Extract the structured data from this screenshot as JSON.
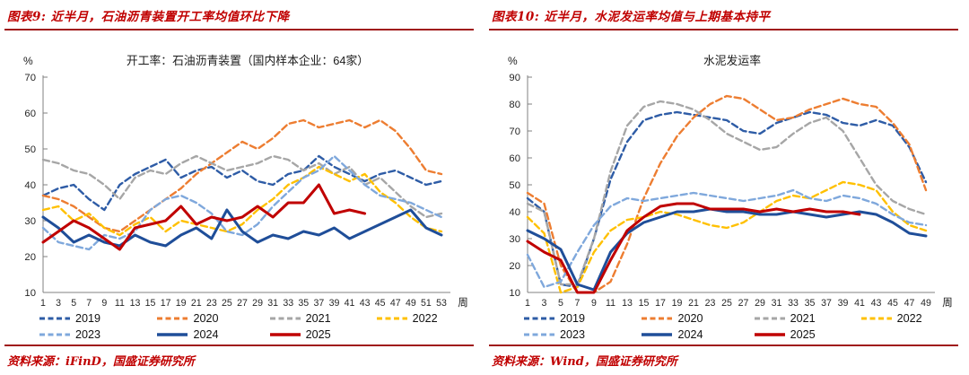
{
  "page": {
    "accent_red": "#C00000",
    "rule_color": "#A01818"
  },
  "figures": [
    {
      "caption": "图表9: 近半月，石油沥青装置开工率均值环比下降",
      "source": "资料来源：iFinD，国盛证券研究所"
    },
    {
      "caption": "图表10: 近半月，水泥发运率均值与上期基本持平",
      "source": "资料来源：Wind，国盛证券研究所"
    }
  ],
  "chart_data": [
    {
      "type": "line",
      "title": "开工率：石油沥青装置（国内样本企业：64家）",
      "unit_label": "%",
      "xlabel": "周",
      "grid": false,
      "legend_position": "bottom",
      "ylim": [
        10,
        70
      ],
      "ytick_step": 10,
      "xlim": [
        1,
        53
      ],
      "x_ticks": [
        1,
        3,
        5,
        7,
        9,
        11,
        13,
        15,
        17,
        19,
        21,
        23,
        25,
        27,
        29,
        31,
        33,
        35,
        37,
        39,
        41,
        43,
        45,
        47,
        49,
        51,
        53
      ],
      "series": [
        {
          "name": "2019",
          "color": "#2E5CA6",
          "dash": true,
          "values": [
            37,
            39,
            40,
            36,
            33,
            40,
            43,
            45,
            47,
            42,
            44,
            45,
            42,
            44,
            41,
            40,
            43,
            44,
            48,
            45,
            43,
            41,
            43,
            44,
            42,
            40,
            41
          ]
        },
        {
          "name": "2020",
          "color": "#ED7D31",
          "dash": true,
          "values": [
            37,
            36,
            34,
            31,
            28,
            27,
            30,
            33,
            36,
            39,
            43,
            46,
            49,
            52,
            50,
            53,
            57,
            58,
            56,
            57,
            58,
            56,
            58,
            55,
            50,
            44,
            43
          ]
        },
        {
          "name": "2021",
          "color": "#A6A6A6",
          "dash": true,
          "values": [
            47,
            46,
            44,
            43,
            40,
            36,
            42,
            44,
            43,
            46,
            48,
            46,
            44,
            45,
            46,
            48,
            47,
            44,
            46,
            43,
            45,
            40,
            42,
            38,
            34,
            31,
            32
          ]
        },
        {
          "name": "2022",
          "color": "#FFC000",
          "dash": true,
          "values": [
            33,
            34,
            30,
            32,
            28,
            26,
            29,
            31,
            27,
            30,
            29,
            28,
            27,
            29,
            33,
            36,
            40,
            42,
            45,
            43,
            41,
            43,
            38,
            35,
            31,
            28,
            27
          ]
        },
        {
          "name": "2023",
          "color": "#7FA8DC",
          "dash": true,
          "values": [
            28,
            24,
            23,
            22,
            26,
            25,
            27,
            33,
            36,
            37,
            35,
            32,
            27,
            26,
            29,
            34,
            38,
            42,
            44,
            48,
            44,
            40,
            37,
            36,
            35,
            33,
            31
          ]
        },
        {
          "name": "2024",
          "color": "#1F4E99",
          "dash": false,
          "values": [
            31,
            28,
            24,
            26,
            24,
            23,
            26,
            24,
            23,
            26,
            28,
            25,
            33,
            27,
            24,
            26,
            25,
            27,
            26,
            28,
            25,
            27,
            29,
            31,
            33,
            28,
            26
          ]
        },
        {
          "name": "2025",
          "color": "#C00000",
          "dash": false,
          "values": [
            24,
            27,
            30,
            28,
            25,
            22,
            28,
            29,
            30,
            34,
            29,
            31,
            30,
            31,
            34,
            31,
            35,
            35,
            40,
            32,
            33,
            32,
            null,
            null,
            null,
            null,
            null
          ]
        }
      ]
    },
    {
      "type": "line",
      "title": "水泥发运率",
      "unit_label": "%",
      "xlabel": "周",
      "grid": false,
      "legend_position": "bottom",
      "ylim": [
        10,
        90
      ],
      "ytick_step": 10,
      "xlim": [
        1,
        49
      ],
      "x_ticks": [
        1,
        3,
        5,
        7,
        9,
        11,
        13,
        15,
        17,
        19,
        21,
        23,
        25,
        27,
        29,
        31,
        33,
        35,
        37,
        39,
        41,
        43,
        45,
        47,
        49
      ],
      "series": [
        {
          "name": "2019",
          "color": "#2E5CA6",
          "dash": true,
          "values": [
            45,
            40,
            13,
            12,
            30,
            52,
            66,
            74,
            76,
            77,
            76,
            75,
            74,
            70,
            69,
            73,
            75,
            77,
            76,
            73,
            72,
            74,
            72,
            64,
            51
          ]
        },
        {
          "name": "2020",
          "color": "#ED7D31",
          "dash": true,
          "values": [
            47,
            43,
            20,
            10,
            10,
            14,
            28,
            45,
            58,
            68,
            75,
            80,
            83,
            82,
            78,
            74,
            75,
            78,
            80,
            82,
            80,
            79,
            73,
            65,
            48
          ]
        },
        {
          "name": "2021",
          "color": "#A6A6A6",
          "dash": true,
          "values": [
            43,
            40,
            13,
            13,
            30,
            55,
            72,
            79,
            81,
            80,
            78,
            74,
            69,
            66,
            63,
            64,
            69,
            73,
            75,
            70,
            60,
            50,
            44,
            41,
            39
          ]
        },
        {
          "name": "2022",
          "color": "#FFC000",
          "dash": true,
          "values": [
            38,
            32,
            10,
            12,
            25,
            33,
            37,
            38,
            40,
            39,
            37,
            35,
            34,
            36,
            40,
            44,
            46,
            45,
            48,
            51,
            50,
            48,
            40,
            35,
            33
          ]
        },
        {
          "name": "2023",
          "color": "#7FA8DC",
          "dash": true,
          "values": [
            24,
            12,
            14,
            25,
            35,
            42,
            45,
            44,
            45,
            46,
            47,
            46,
            45,
            44,
            45,
            46,
            48,
            45,
            44,
            46,
            45,
            43,
            39,
            36,
            35
          ]
        },
        {
          "name": "2024",
          "color": "#1F4E99",
          "dash": false,
          "values": [
            33,
            30,
            26,
            13,
            11,
            25,
            32,
            36,
            38,
            40,
            40,
            41,
            40,
            40,
            39,
            39,
            40,
            39,
            38,
            39,
            40,
            39,
            36,
            32,
            31
          ]
        },
        {
          "name": "2025",
          "color": "#C00000",
          "dash": false,
          "values": [
            29,
            25,
            22,
            10,
            10,
            22,
            33,
            38,
            42,
            43,
            43,
            41,
            41,
            41,
            40,
            41,
            40,
            41,
            40,
            40,
            39,
            null,
            null,
            null,
            null
          ]
        }
      ]
    }
  ]
}
